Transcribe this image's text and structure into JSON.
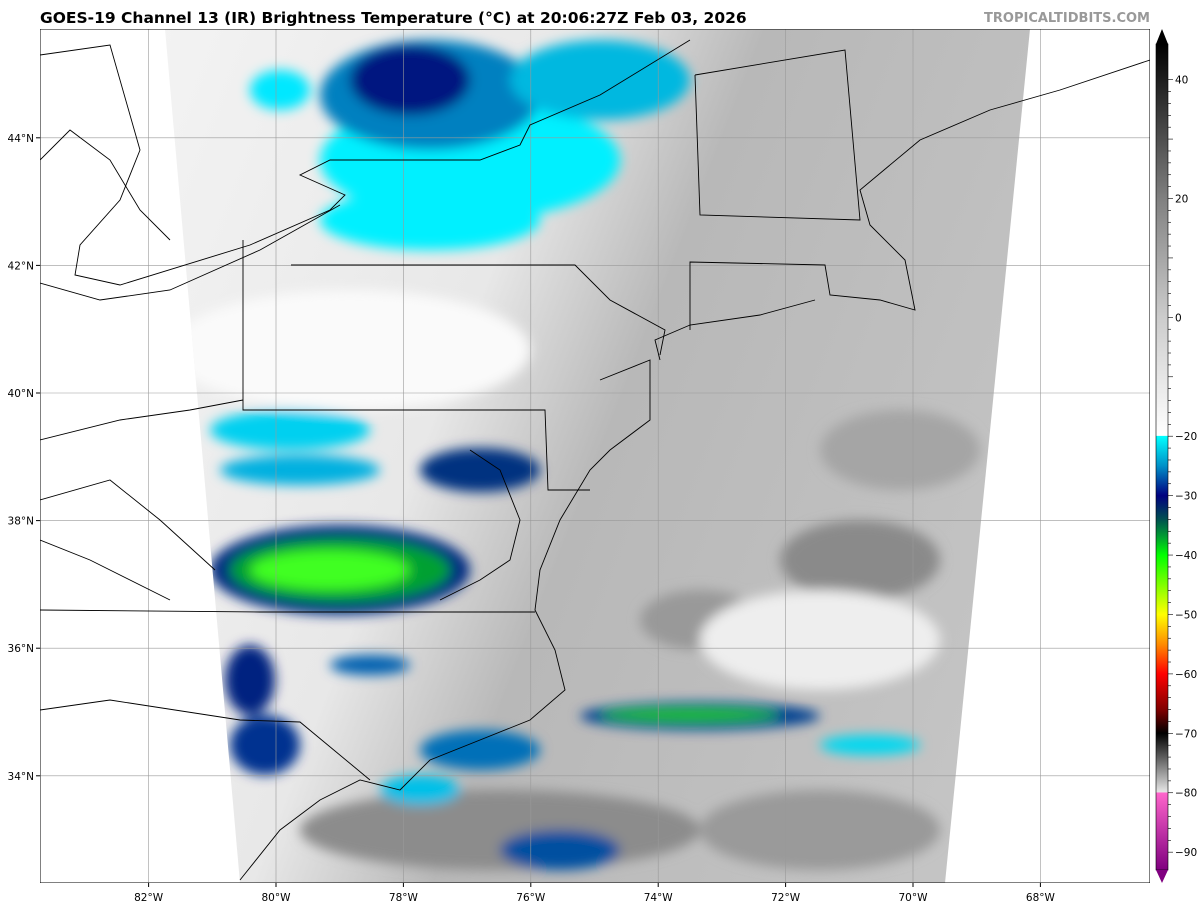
{
  "title": "GOES-19 Channel 13 (IR) Brightness Temperature (°C) at 20:06:27Z Feb 03, 2026",
  "watermark": "TROPICALTIDBITS.COM",
  "map": {
    "lon_labels": [
      "82°W",
      "80°W",
      "78°W",
      "76°W",
      "74°W",
      "72°W",
      "70°W",
      "68°W"
    ],
    "lon_values": [
      -82,
      -80,
      -78,
      -76,
      -74,
      -72,
      -70,
      -68
    ],
    "lat_labels": [
      "44°N",
      "42°N",
      "40°N",
      "38°N",
      "36°N",
      "34°N"
    ],
    "lat_values": [
      44,
      42,
      40,
      38,
      36,
      34
    ],
    "lon_range": [
      -83.7,
      -66.3
    ],
    "lat_range": [
      32.3,
      45.7
    ],
    "grid": true
  },
  "colorbar": {
    "ticks": [
      "40",
      "20",
      "0",
      "−20",
      "−30",
      "−40",
      "−50",
      "−60",
      "−70",
      "−80",
      "−90"
    ],
    "tick_values": [
      40,
      20,
      0,
      -20,
      -30,
      -40,
      -50,
      -60,
      -70,
      -80,
      -90
    ],
    "range": [
      -93,
      46
    ],
    "extend": "both",
    "stops": [
      {
        "v": 46,
        "c": "#000000"
      },
      {
        "v": 20,
        "c": "#808080"
      },
      {
        "v": 0,
        "c": "#cccccc"
      },
      {
        "v": -19.9,
        "c": "#ffffff"
      },
      {
        "v": -20,
        "c": "#00ffff"
      },
      {
        "v": -25,
        "c": "#0090c8"
      },
      {
        "v": -30,
        "c": "#000080"
      },
      {
        "v": -34,
        "c": "#005050"
      },
      {
        "v": -37,
        "c": "#00a030"
      },
      {
        "v": -40,
        "c": "#00ff00"
      },
      {
        "v": -50,
        "c": "#ffff00"
      },
      {
        "v": -55,
        "c": "#ff8c00"
      },
      {
        "v": -60,
        "c": "#ff0000"
      },
      {
        "v": -66,
        "c": "#800000"
      },
      {
        "v": -70,
        "c": "#000000"
      },
      {
        "v": -79.9,
        "c": "#e6e6e6"
      },
      {
        "v": -80,
        "c": "#ff66cc"
      },
      {
        "v": -93,
        "c": "#800080"
      }
    ]
  }
}
